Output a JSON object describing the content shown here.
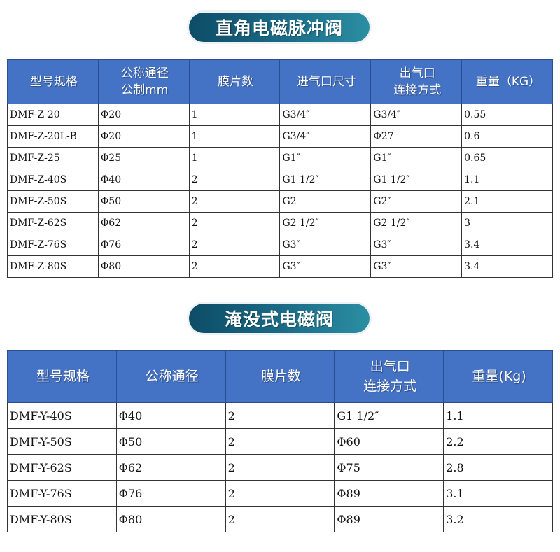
{
  "tables": [
    {
      "title": "直角电磁脉冲阀",
      "headers": [
        "型号规格",
        "公称通径\n公制mm",
        "膜片数",
        "进气口尺寸",
        "出气口\n连接方式",
        "重量（KG）"
      ],
      "rows": [
        [
          "DMF-Z-20",
          "Φ20",
          "1",
          "G3/4″",
          "G3/4″",
          "0.55"
        ],
        [
          "DMF-Z-20L-B",
          "Φ20",
          "1",
          "G3/4″",
          "Φ27",
          "0.6"
        ],
        [
          "DMF-Z-25",
          "Φ25",
          "1",
          "G1″",
          "G1″",
          "0.65"
        ],
        [
          "DMF-Z-40S",
          "Φ40",
          "2",
          "G1 1/2″",
          "G1 1/2″",
          "1.1"
        ],
        [
          "DMF-Z-50S",
          "Φ50",
          "2",
          "G2",
          "G2″",
          "2.1"
        ],
        [
          "DMF-Z-62S",
          "Φ62",
          "2",
          "G2 1/2″",
          "G2 1/2″",
          "3"
        ],
        [
          "DMF-Z-76S",
          "Φ76",
          "2",
          "G3″",
          "G3″",
          "3.4"
        ],
        [
          "DMF-Z-80S",
          "Φ80",
          "2",
          "G3″",
          "G3″",
          "3.4"
        ]
      ]
    },
    {
      "title": "淹没式电磁阀",
      "headers": [
        "型号规格",
        "公称通径",
        "膜片数",
        "出气口\n连接方式",
        "重量(Kg)"
      ],
      "rows": [
        [
          "DMF-Y-40S",
          "Φ40",
          "2",
          "G1 1/2″",
          "1.1"
        ],
        [
          "DMF-Y-50S",
          "Φ50",
          "2",
          "Φ60",
          "2.2"
        ],
        [
          "DMF-Y-62S",
          "Φ62",
          "2",
          "Φ75",
          "2.8"
        ],
        [
          "DMF-Y-76S",
          "Φ76",
          "2",
          "Φ89",
          "3.1"
        ],
        [
          "DMF-Y-80S",
          "Φ80",
          "2",
          "Φ89",
          "3.2"
        ]
      ]
    }
  ],
  "colors": {
    "header_bg": "#4472c4",
    "title_pill_start": "#0d4c66",
    "title_pill_end": "#2b8ea3"
  }
}
